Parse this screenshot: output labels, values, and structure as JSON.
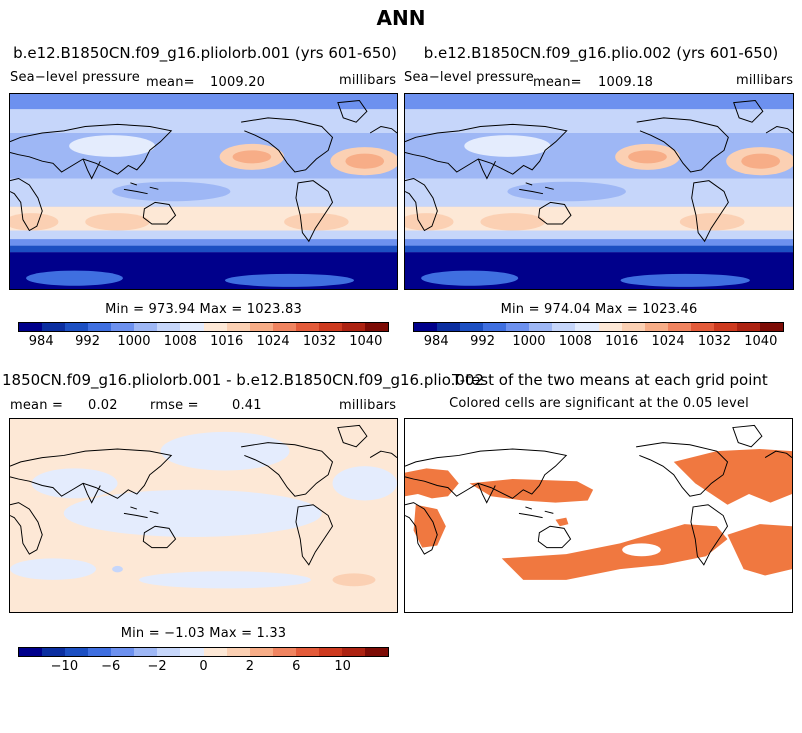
{
  "chart_data": {
    "type": "heatmap",
    "title": "ANN",
    "panels": [
      {
        "name": "case-1",
        "title": "b.e12.B1850CN.f09_g16.pliolorb.001 (yrs 601-650)",
        "variable": "Sea−level pressure",
        "mean_label": "mean=",
        "mean": "1009.20",
        "units": "millibars",
        "minmax": "Min = 973.94 Max = 1023.83",
        "colorbar_ticks": [
          "984",
          "992",
          "1000",
          "1008",
          "1016",
          "1024",
          "1032",
          "1040"
        ]
      },
      {
        "name": "case-2",
        "title": "b.e12.B1850CN.f09_g16.plio.002 (yrs 601-650)",
        "variable": "Sea−level pressure",
        "mean_label": "mean=",
        "mean": "1009.18",
        "units": "millibars",
        "minmax": "Min = 974.04 Max = 1023.46",
        "colorbar_ticks": [
          "984",
          "992",
          "1000",
          "1008",
          "1016",
          "1024",
          "1032",
          "1040"
        ]
      },
      {
        "name": "difference",
        "title": "1850CN.f09_g16.pliolorb.001 - b.e12.B1850CN.f09_g16.plio.002",
        "mean_label": "mean =",
        "mean": "0.02",
        "rmse_label": "rmse =",
        "rmse": "0.41",
        "units": "millibars",
        "minmax": "Min = −1.03 Max = 1.33",
        "colorbar_ticks": [
          "−10",
          "−6",
          "−2",
          "0",
          "2",
          "6",
          "10"
        ]
      },
      {
        "name": "t-test",
        "title": "T-test of the two means at each grid point",
        "subtitle": "Colored cells are significant at the 0.05 level",
        "significance_level": 0.05
      }
    ]
  },
  "colors": {
    "bar16": [
      "#00008b",
      "#0b2ea0",
      "#1c4fc2",
      "#3f6fe0",
      "#6d91ef",
      "#9eb7f5",
      "#c6d6fa",
      "#e4ecfd",
      "#fde8d6",
      "#fbd0b3",
      "#f7ad87",
      "#f08460",
      "#e35b3a",
      "#cd3a1f",
      "#ad2312",
      "#7d0c06"
    ],
    "sig": "#f07840",
    "land": "#000000"
  }
}
